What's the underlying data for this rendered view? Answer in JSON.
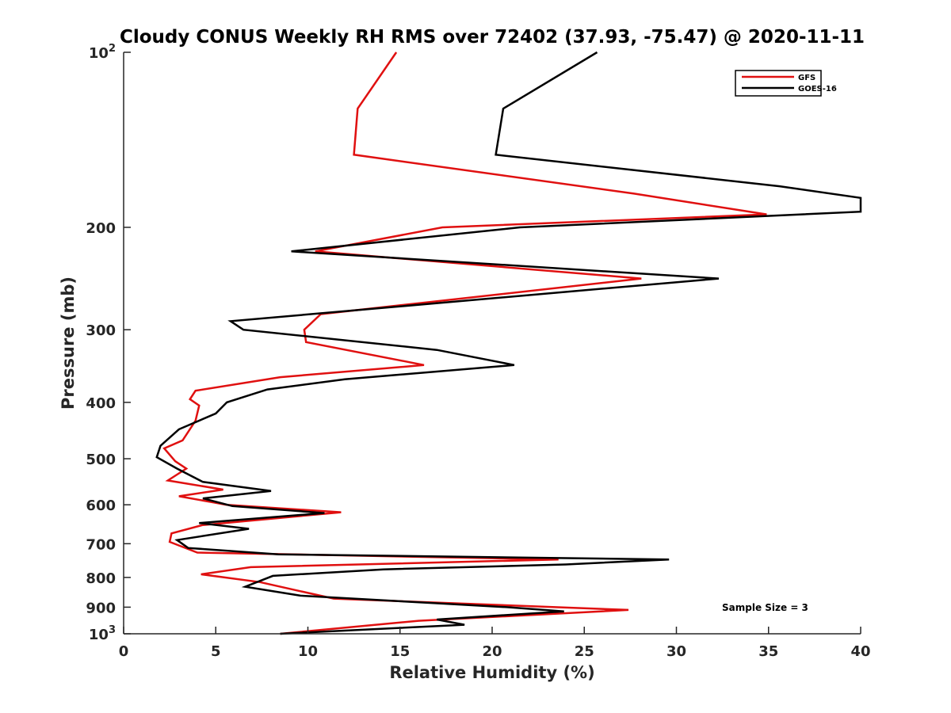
{
  "chart_data": {
    "type": "line",
    "title": "Cloudy CONUS Weekly RH RMS over 72402 (37.93, -75.47) @ 2020-11-11",
    "xlabel": "Relative Humidity (%)",
    "ylabel": "Pressure (mb)",
    "xlim": [
      0,
      40
    ],
    "ylim": [
      100,
      1000
    ],
    "y_scale": "log",
    "y_reversed": true,
    "x_ticks": [
      "0",
      "5",
      "10",
      "15",
      "20",
      "25",
      "30",
      "35",
      "40"
    ],
    "y_ticks": [
      {
        "value": 100,
        "label": "10",
        "sup": "2"
      },
      {
        "value": 200,
        "label": "200",
        "sup": ""
      },
      {
        "value": 300,
        "label": "300",
        "sup": ""
      },
      {
        "value": 400,
        "label": "400",
        "sup": ""
      },
      {
        "value": 500,
        "label": "500",
        "sup": ""
      },
      {
        "value": 600,
        "label": "600",
        "sup": ""
      },
      {
        "value": 700,
        "label": "700",
        "sup": ""
      },
      {
        "value": 800,
        "label": "800",
        "sup": ""
      },
      {
        "value": 900,
        "label": "900",
        "sup": ""
      },
      {
        "value": 1000,
        "label": "10",
        "sup": "3"
      }
    ],
    "grid": false,
    "legend_position": "top-right",
    "annotation": "Sample Size = 3",
    "series": [
      {
        "name": "GFS",
        "color": "#e01010",
        "points": [
          [
            14.8,
            100
          ],
          [
            12.7,
            125
          ],
          [
            12.5,
            150
          ],
          [
            27.7,
            175
          ],
          [
            34.9,
            190
          ],
          [
            17.3,
            200
          ],
          [
            10.4,
            220
          ],
          [
            28.1,
            245
          ],
          [
            10.7,
            282
          ],
          [
            9.8,
            300
          ],
          [
            9.9,
            315
          ],
          [
            16.3,
            345
          ],
          [
            8.5,
            362
          ],
          [
            3.9,
            382
          ],
          [
            3.6,
            395
          ],
          [
            4.1,
            405
          ],
          [
            3.9,
            430
          ],
          [
            3.2,
            465
          ],
          [
            2.2,
            480
          ],
          [
            2.8,
            505
          ],
          [
            3.4,
            520
          ],
          [
            2.4,
            545
          ],
          [
            5.4,
            565
          ],
          [
            3.0,
            580
          ],
          [
            5.6,
            600
          ],
          [
            11.8,
            618
          ],
          [
            4.3,
            650
          ],
          [
            2.6,
            672
          ],
          [
            2.5,
            695
          ],
          [
            4.0,
            725
          ],
          [
            23.6,
            745
          ],
          [
            6.9,
            768
          ],
          [
            4.2,
            790
          ],
          [
            7.4,
            815
          ],
          [
            9.6,
            845
          ],
          [
            11.4,
            870
          ],
          [
            27.4,
            910
          ],
          [
            16.0,
            950
          ],
          [
            8.5,
            1000
          ]
        ]
      },
      {
        "name": "GOES-16",
        "color": "#000000",
        "points": [
          [
            25.7,
            100
          ],
          [
            20.6,
            125
          ],
          [
            20.2,
            150
          ],
          [
            35.6,
            170
          ],
          [
            40.0,
            178
          ],
          [
            40.0,
            188
          ],
          [
            21.5,
            200
          ],
          [
            9.1,
            220
          ],
          [
            32.3,
            245
          ],
          [
            5.8,
            290
          ],
          [
            6.5,
            300
          ],
          [
            17.0,
            325
          ],
          [
            21.2,
            345
          ],
          [
            12.0,
            365
          ],
          [
            7.8,
            380
          ],
          [
            5.6,
            400
          ],
          [
            5.0,
            418
          ],
          [
            3.0,
            445
          ],
          [
            2.0,
            475
          ],
          [
            1.8,
            497
          ],
          [
            2.9,
            520
          ],
          [
            4.3,
            548
          ],
          [
            8.0,
            568
          ],
          [
            4.3,
            585
          ],
          [
            5.9,
            603
          ],
          [
            10.9,
            620
          ],
          [
            4.1,
            645
          ],
          [
            6.8,
            660
          ],
          [
            2.9,
            690
          ],
          [
            3.5,
            712
          ],
          [
            8.4,
            730
          ],
          [
            29.6,
            745
          ],
          [
            24.0,
            760
          ],
          [
            14.1,
            775
          ],
          [
            8.1,
            795
          ],
          [
            6.6,
            830
          ],
          [
            9.6,
            860
          ],
          [
            20.8,
            900
          ],
          [
            23.9,
            915
          ],
          [
            17.0,
            945
          ],
          [
            18.5,
            965
          ],
          [
            8.5,
            1000
          ]
        ]
      }
    ]
  }
}
